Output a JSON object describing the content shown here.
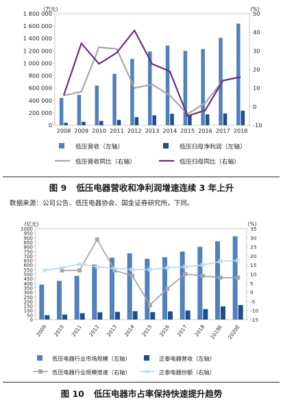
{
  "figures": [
    {
      "number": "图 9",
      "title": "低压电器营收和净利润增速连续 3 年上升"
    },
    {
      "number": "图 10",
      "title": "低压电器市占率保持快速提升趋势"
    }
  ],
  "source_note": "数据来源：公司公告、低压电器协会、国金证券研究所，下同。",
  "chart_data": [
    {
      "type": "bar",
      "title": "",
      "left_axis_unit": "(万元)",
      "right_axis_unit": "(%)",
      "ylim_left": [
        0,
        1800000
      ],
      "ylim_right": [
        -10,
        50
      ],
      "left_ticks": [
        "0",
        "200 000",
        "400 000",
        "600 000",
        "800 000",
        "1 000 000",
        "1 200 000",
        "1 400 000",
        "1 600 000",
        "1 800 000"
      ],
      "left_tick_values": [
        0,
        200000,
        400000,
        600000,
        800000,
        1000000,
        1200000,
        1400000,
        1600000,
        1800000
      ],
      "right_ticks": [
        "-10",
        "0",
        "10",
        "20",
        "30",
        "40",
        "50"
      ],
      "right_tick_values": [
        -10,
        0,
        10,
        20,
        30,
        40,
        50
      ],
      "categories": [
        "2008",
        "2009",
        "2010",
        "2011",
        "2012",
        "2013",
        "2014",
        "2015",
        "2016",
        "2017",
        "2018"
      ],
      "series": [
        {
          "name": "低压营收（左轴）",
          "kind": "bar",
          "axis": "left",
          "color": "#4f81bd",
          "values": [
            440000,
            490000,
            640000,
            830000,
            1070000,
            1190000,
            1285000,
            1200000,
            1230000,
            1410000,
            1640000
          ]
        },
        {
          "name": "低压归母净利润（左轴）",
          "kind": "bar",
          "axis": "left",
          "color": "#1f4e8a",
          "values": [
            40000,
            55000,
            70000,
            85000,
            130000,
            160000,
            185000,
            170000,
            175000,
            190000,
            235000
          ]
        },
        {
          "name": "低压营收同比（右轴）",
          "kind": "line",
          "axis": "right",
          "color": "#a6a6a6",
          "values": [
            6,
            8,
            32,
            31,
            10,
            12,
            6,
            -4,
            2,
            14,
            16
          ]
        },
        {
          "name": "低压归母同比（右轴）",
          "kind": "line",
          "axis": "right",
          "color": "#6a2c7e",
          "values": [
            6,
            34,
            23,
            29,
            41,
            23,
            19,
            -5,
            -2,
            14,
            16
          ]
        }
      ]
    },
    {
      "type": "bar",
      "title": "",
      "left_axis_unit": "(亿元)",
      "right_axis_unit": "(%)",
      "ylim_left": [
        0,
        1000
      ],
      "ylim_right": [
        -15,
        35
      ],
      "left_ticks": [
        "0",
        "50",
        "100",
        "150",
        "200",
        "250",
        "300",
        "350",
        "400",
        "450",
        "500",
        "550",
        "600",
        "650",
        "700",
        "750",
        "800",
        "850",
        "900",
        "950",
        "1000"
      ],
      "left_tick_values": [
        0,
        50,
        100,
        150,
        200,
        250,
        300,
        350,
        400,
        450,
        500,
        550,
        600,
        650,
        700,
        750,
        800,
        850,
        900,
        950,
        1000
      ],
      "right_ticks": [
        "-15",
        "-10",
        "-5",
        "0",
        "5",
        "10",
        "15",
        "20",
        "25",
        "30",
        "35"
      ],
      "right_tick_values": [
        -15,
        -10,
        -5,
        0,
        5,
        10,
        15,
        20,
        25,
        30,
        35
      ],
      "categories": [
        "2009",
        "2010",
        "2011",
        "2012",
        "2013",
        "2014",
        "2015",
        "2016",
        "2017",
        "2018",
        "2019E",
        "2020E"
      ],
      "series": [
        {
          "name": "低压电器行业市场规模（左轴）",
          "kind": "bar",
          "axis": "left",
          "color": "#4f81bd",
          "values": [
            385,
            425,
            480,
            605,
            680,
            728,
            668,
            685,
            748,
            800,
            860,
            915
          ]
        },
        {
          "name": "正泰电器营收（左轴）",
          "kind": "bar",
          "axis": "left",
          "color": "#1f4e8a",
          "values": [
            48,
            55,
            70,
            80,
            85,
            92,
            82,
            90,
            100,
            115,
            145,
            160
          ]
        },
        {
          "name": "低压电器行业规模增速（右轴）",
          "kind": "line",
          "axis": "right",
          "color": "#a6a6a6",
          "marker": "square",
          "values": [
            null,
            12,
            12,
            29,
            12,
            9,
            -7,
            2,
            10,
            9,
            8,
            8
          ]
        },
        {
          "name": "正泰电器份额（右轴）",
          "kind": "line",
          "axis": "right",
          "color": "#b5dcef",
          "marker": "cross",
          "values": [
            12,
            13.5,
            15.5,
            14,
            13,
            12.5,
            12.5,
            13.5,
            14,
            15,
            17,
            17.5
          ]
        }
      ]
    }
  ]
}
